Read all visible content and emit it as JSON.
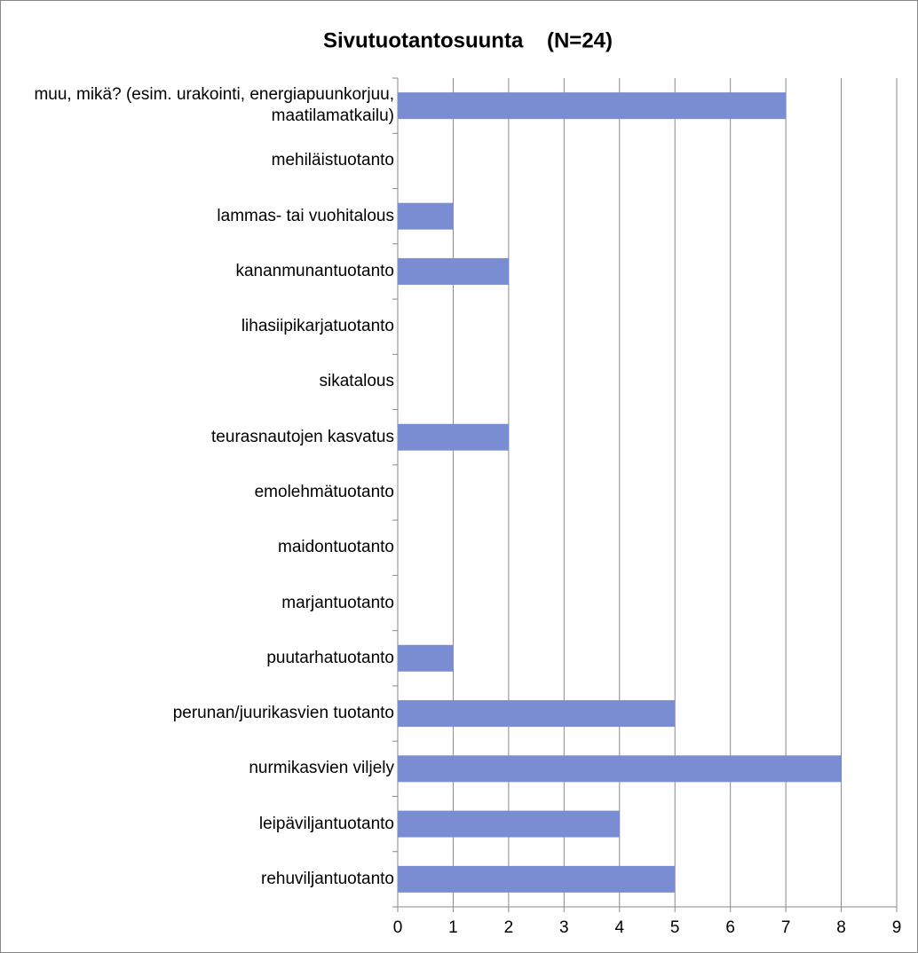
{
  "chart_data": {
    "type": "bar",
    "orientation": "horizontal",
    "title": "Sivutuotantosuunta    (N=24)",
    "categories": [
      "muu, mikä? (esim. urakointi, energiapuunkorjuu, maatilamatkailu)",
      "mehiläistuotanto",
      "lammas- tai vuohitalous",
      "kananmunantuotanto",
      "lihasiipikarjatuotanto",
      "sikatalous",
      "teurasnautojen kasvatus",
      "emolehmätuotanto",
      "maidontuotanto",
      "marjantuotanto",
      "puutarhatuotanto",
      "perunan/juurikasvien tuotanto",
      "nurmikasvien viljely",
      "leipäviljantuotanto",
      "rehuviljantuotanto"
    ],
    "values": [
      7,
      0,
      1,
      2,
      0,
      0,
      2,
      0,
      0,
      0,
      1,
      5,
      8,
      4,
      5
    ],
    "color": "#7b8dd2",
    "xlim": [
      0,
      9
    ],
    "xticks": [
      0,
      1,
      2,
      3,
      4,
      5,
      6,
      7,
      8,
      9
    ],
    "grid": true
  }
}
